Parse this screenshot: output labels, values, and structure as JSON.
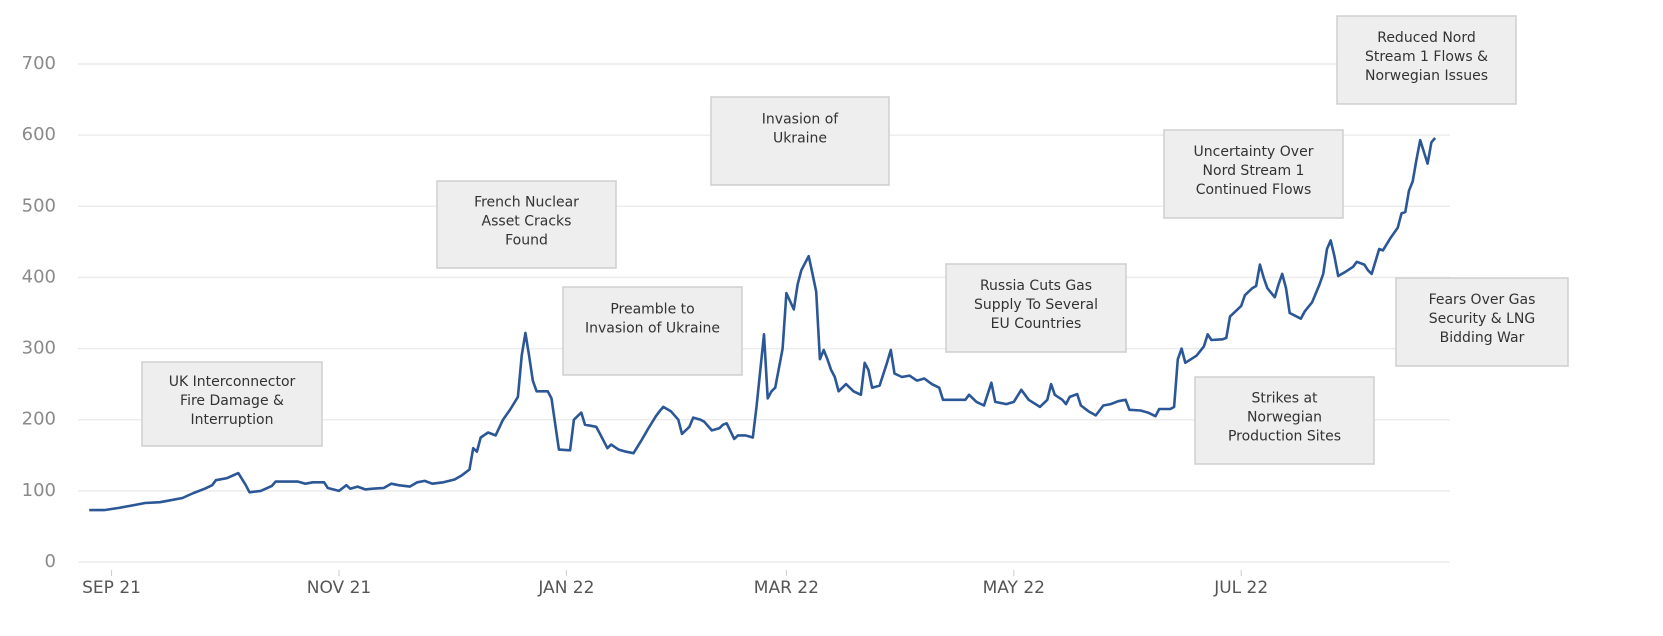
{
  "chart_data": {
    "type": "line",
    "color": "#2b5797",
    "grid": true,
    "ylim": [
      0,
      700
    ],
    "yticks": [
      0,
      100,
      200,
      300,
      400,
      500,
      600,
      700
    ],
    "xlim": [
      -9,
      359
    ],
    "xticks": [
      {
        "value": 0,
        "label": "SEP 21"
      },
      {
        "value": 61,
        "label": "NOV 21"
      },
      {
        "value": 122,
        "label": "JAN 22"
      },
      {
        "value": 181,
        "label": "MAR 22"
      },
      {
        "value": 242,
        "label": "MAY 22"
      },
      {
        "value": 303,
        "label": "JUL 22"
      }
    ],
    "x": [
      -6,
      -2,
      2,
      6,
      9,
      13,
      15,
      19,
      22,
      25,
      27,
      28,
      31,
      34,
      36,
      37,
      40,
      43,
      44,
      48,
      50,
      52,
      54,
      57,
      58,
      61,
      63,
      64,
      66,
      68,
      70,
      73,
      75,
      77,
      80,
      82,
      84,
      86,
      89,
      92,
      94,
      96,
      97,
      98,
      99,
      101,
      103,
      105,
      107,
      109,
      110,
      111,
      112,
      113,
      114,
      117,
      118,
      120,
      123,
      124,
      126,
      127,
      130,
      131,
      133,
      134,
      136,
      138,
      140,
      142,
      144,
      146,
      147,
      148,
      150,
      152,
      153,
      155,
      156,
      158,
      159,
      161,
      163,
      164,
      165,
      167,
      168,
      170,
      172,
      173,
      175,
      176,
      177,
      178,
      180,
      181,
      183,
      184,
      185,
      187,
      188,
      189,
      190,
      191,
      192,
      193,
      194,
      195,
      197,
      198,
      199,
      201,
      202,
      203,
      204,
      206,
      208,
      209,
      210,
      212,
      214,
      216,
      218,
      220,
      222,
      223,
      226,
      229,
      230,
      232,
      234,
      236,
      237,
      240,
      242,
      244,
      246,
      249,
      251,
      252,
      253,
      255,
      256,
      257,
      259,
      260,
      262,
      264,
      266,
      268,
      270,
      272,
      273,
      276,
      278,
      280,
      281,
      284,
      285,
      286,
      287,
      288,
      291,
      293,
      294,
      295,
      298,
      299,
      300,
      303,
      304,
      306,
      307,
      308,
      309,
      310,
      312,
      313,
      314,
      315,
      316,
      319,
      320,
      322,
      324,
      325,
      326,
      327,
      328,
      329,
      331,
      333,
      334,
      336,
      337,
      338,
      340,
      341,
      343,
      345,
      346,
      347,
      348,
      349,
      350,
      351,
      353,
      354,
      355
    ],
    "values": [
      73,
      73,
      76,
      80,
      83,
      84,
      86,
      90,
      97,
      103,
      108,
      115,
      118,
      125,
      108,
      98,
      100,
      107,
      113,
      113,
      113,
      110,
      112,
      112,
      104,
      100,
      108,
      103,
      106,
      102,
      103,
      104,
      110,
      108,
      106,
      112,
      114,
      110,
      112,
      116,
      122,
      130,
      160,
      155,
      175,
      182,
      178,
      200,
      215,
      232,
      290,
      322,
      290,
      255,
      240,
      240,
      230,
      158,
      157,
      200,
      210,
      193,
      190,
      180,
      160,
      165,
      158,
      155,
      153,
      170,
      188,
      205,
      212,
      218,
      212,
      200,
      180,
      190,
      203,
      200,
      197,
      185,
      188,
      193,
      195,
      173,
      178,
      178,
      175,
      218,
      320,
      230,
      240,
      245,
      300,
      378,
      355,
      390,
      410,
      430,
      405,
      380,
      285,
      298,
      285,
      270,
      260,
      240,
      250,
      245,
      240,
      235,
      280,
      270,
      245,
      248,
      280,
      298,
      265,
      260,
      262,
      255,
      258,
      250,
      245,
      228,
      228,
      228,
      235,
      225,
      220,
      252,
      225,
      222,
      225,
      242,
      228,
      218,
      228,
      250,
      235,
      228,
      222,
      232,
      236,
      220,
      212,
      206,
      220,
      222,
      226,
      228,
      214,
      213,
      210,
      205,
      215,
      215,
      218,
      285,
      300,
      280,
      290,
      303,
      320,
      312,
      313,
      315,
      345,
      360,
      375,
      385,
      388,
      418,
      400,
      385,
      372,
      390,
      405,
      385,
      350,
      342,
      352,
      365,
      390,
      405,
      440,
      452,
      430,
      402,
      408,
      415,
      422,
      418,
      410,
      405,
      440,
      438,
      455,
      470,
      490,
      492,
      522,
      535,
      565,
      593,
      560,
      590,
      596
    ],
    "annotations": [
      [
        "UK Interconnector",
        "Fire Damage &",
        "Interruption"
      ],
      [
        "French Nuclear",
        "Asset Cracks",
        "Found"
      ],
      [
        "Preamble to",
        "Invasion of Ukraine"
      ],
      [
        "Invasion of",
        "Ukraine"
      ],
      [
        "Russia Cuts Gas",
        "Supply To Several",
        "EU Countries"
      ],
      [
        "Uncertainty Over",
        "Nord Stream 1",
        "Continued Flows"
      ],
      [
        "Strikes at",
        "Norwegian",
        "Production Sites"
      ],
      [
        "Reduced Nord",
        "Stream 1 Flows &",
        "Norwegian Issues"
      ],
      [
        "Fears Over Gas",
        "Security & LNG",
        "Bidding War"
      ]
    ]
  }
}
